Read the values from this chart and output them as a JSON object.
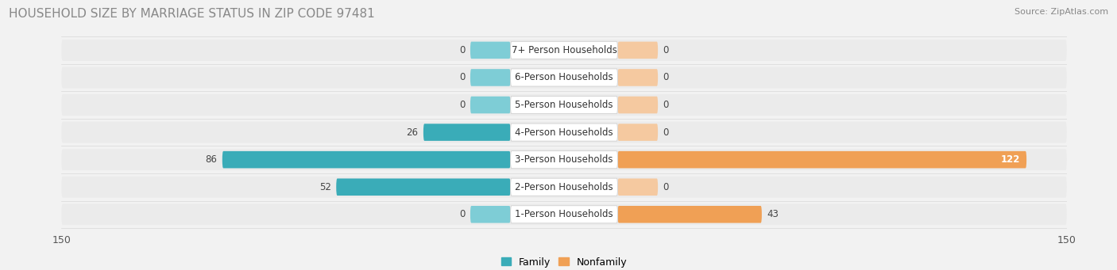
{
  "title": "HOUSEHOLD SIZE BY MARRIAGE STATUS IN ZIP CODE 97481",
  "source": "Source: ZipAtlas.com",
  "categories": [
    "7+ Person Households",
    "6-Person Households",
    "5-Person Households",
    "4-Person Households",
    "3-Person Households",
    "2-Person Households",
    "1-Person Households"
  ],
  "family_values": [
    0,
    0,
    0,
    26,
    86,
    52,
    0
  ],
  "nonfamily_values": [
    0,
    0,
    0,
    0,
    122,
    0,
    43
  ],
  "family_color_strong": "#3aacb8",
  "family_color_light": "#7ecdd6",
  "nonfamily_color_strong": "#f0a055",
  "nonfamily_color_light": "#f5c9a0",
  "xlim": 150,
  "background_color": "#f2f2f2",
  "bar_bg_color": "#e4e4e4",
  "row_bg_color": "#ebebeb",
  "title_color": "#888888",
  "title_fontsize": 11,
  "source_fontsize": 8,
  "label_fontsize": 8.5,
  "value_fontsize": 8.5,
  "min_bar_width": 12
}
